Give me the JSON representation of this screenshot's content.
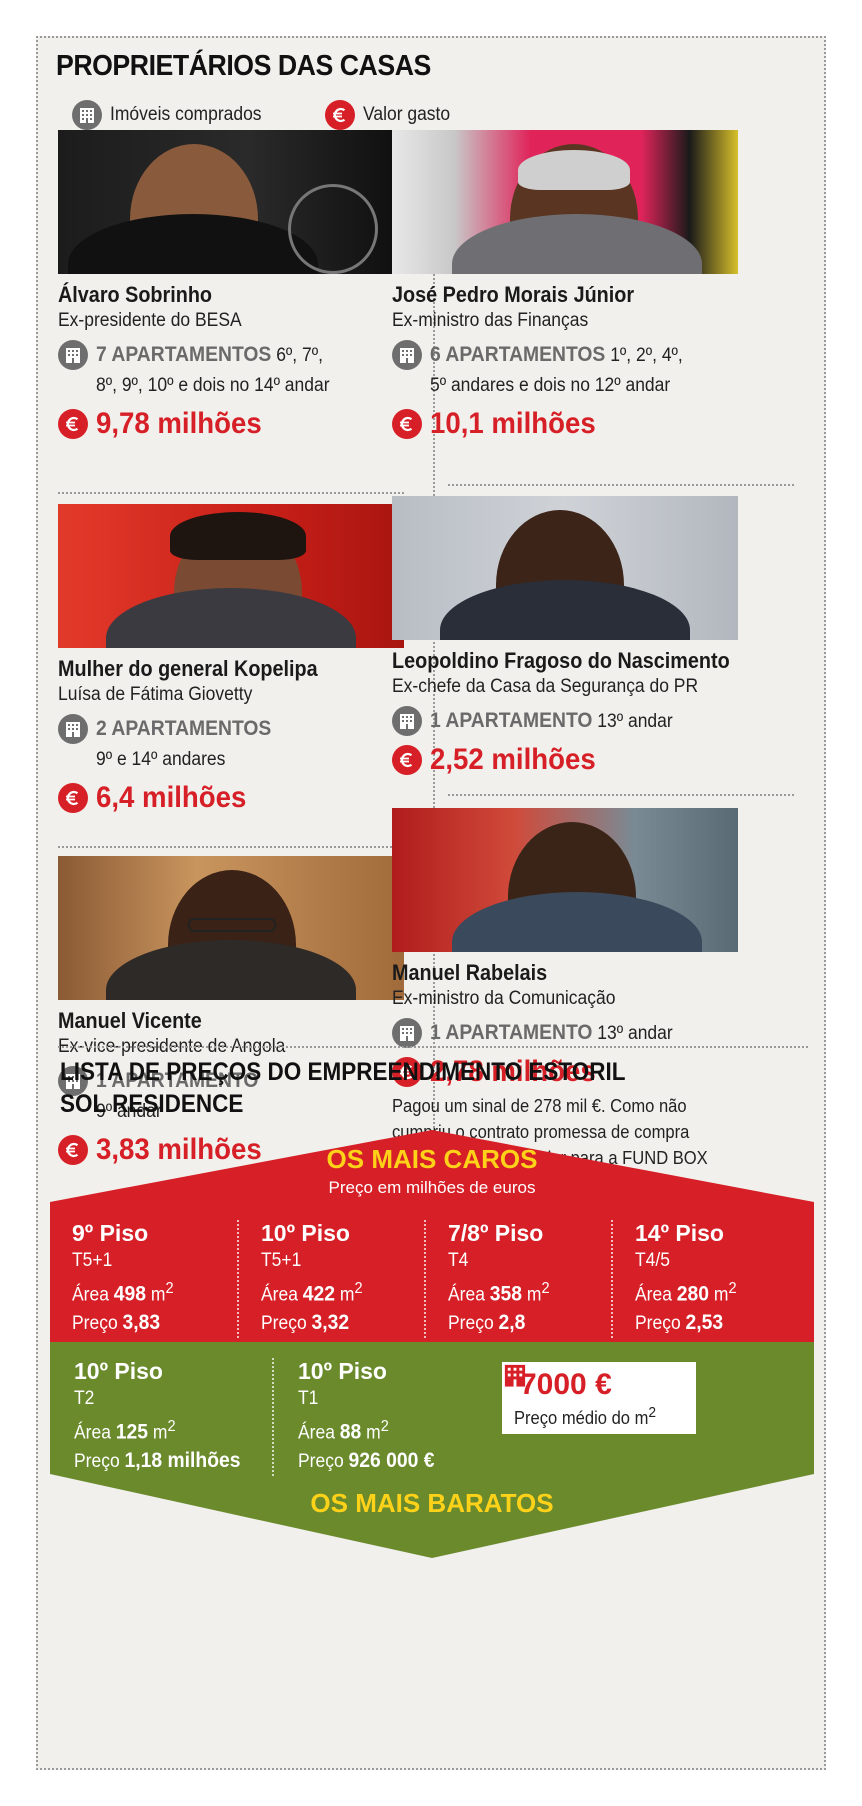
{
  "title": "PROPRIETÁRIOS DAS CASAS",
  "legend": {
    "properties": "Imóveis comprados",
    "spent": "Valor gasto"
  },
  "icons": {
    "properties": "building-icon",
    "spent": "euro-icon"
  },
  "colors": {
    "red": "#d61f26",
    "green": "#6a8a2c",
    "yellow": "#ffd21a",
    "gray": "#6a6a6a"
  },
  "owners": [
    {
      "name": "Álvaro Sobrinho",
      "role": "Ex-presidente do BESA",
      "apt_count": "7 APARTAMENTOS",
      "apt_detail_1": " 6º, 7º,",
      "apt_detail_2": "8º, 9º, 10º e dois no 14º andar",
      "value": "9,78 milhões"
    },
    {
      "name": "José Pedro Morais Júnior",
      "role": "Ex-ministro das Finanças",
      "apt_count": "6 APARTAMENTOS",
      "apt_detail_1": " 1º, 2º, 4º,",
      "apt_detail_2": "5º andares e dois no 12º andar",
      "value": "10,1 milhões"
    },
    {
      "name": "Mulher do general Kopelipa",
      "role": "Luísa de Fátima Giovetty",
      "apt_count": "2 APARTAMENTOS",
      "apt_detail_1": "",
      "apt_detail_2": "9º e 14º andares",
      "value": "6,4 milhões"
    },
    {
      "name": "Leopoldino Fragoso do Nascimento",
      "role": "Ex-chefe da Casa da Segurança do PR",
      "apt_count": "1 APARTAMENTO",
      "apt_detail_1": " 13º andar",
      "apt_detail_2": "",
      "value": "2,52 milhões"
    },
    {
      "name": "Manuel Vicente",
      "role": "Ex-vice-presidente de Angola",
      "apt_count": "1 APARTAMENTO",
      "apt_detail_1": "",
      "apt_detail_2": "9º andar",
      "value": "3,83 milhões"
    },
    {
      "name": "Manuel Rabelais",
      "role": "Ex-ministro da Comunicação",
      "apt_count": "1 APARTAMENTO",
      "apt_detail_1": " 13º andar",
      "apt_detail_2": "",
      "value": "2,78 milhões",
      "note_1": "Pagou um sinal de 278 mil €. Como não",
      "note_2": "cumpriu o contrato promessa de compra",
      "note_3": "e venda, perdeu o valor para a FUND BOX"
    }
  ],
  "price_list": {
    "title_1": "LISTA DE PREÇOS DO EMPREENDIMENTO ESTORIL",
    "title_2": "SOL RESIDENCE",
    "expensive": {
      "title": "OS MAIS CAROS",
      "subtitle": "Preço em milhões de euros",
      "floors": [
        {
          "floor": "9º Piso",
          "type": "T5+1",
          "area": "498",
          "price": "3,83"
        },
        {
          "floor": "10º Piso",
          "type": "T5+1",
          "area": "422",
          "price": "3,32"
        },
        {
          "floor": "7/8º Piso",
          "type": "T4",
          "area": "358",
          "price": "2,8"
        },
        {
          "floor": "14º Piso",
          "type": "T4/5",
          "area": "280",
          "price": "2,53"
        }
      ]
    },
    "cheapest": {
      "title": "OS MAIS BARATOS",
      "floors": [
        {
          "floor": "10º Piso",
          "type": "T2",
          "area": "125",
          "price": "1,18 milhões"
        },
        {
          "floor": "10º Piso",
          "type": "T1",
          "area": "88",
          "price": "926 000 €"
        }
      ]
    },
    "area_label": "Área",
    "price_label": "Preço",
    "unit": "m",
    "unit_exp": "2",
    "average": {
      "value": "7000 €",
      "label": "Preço médio do m"
    }
  }
}
